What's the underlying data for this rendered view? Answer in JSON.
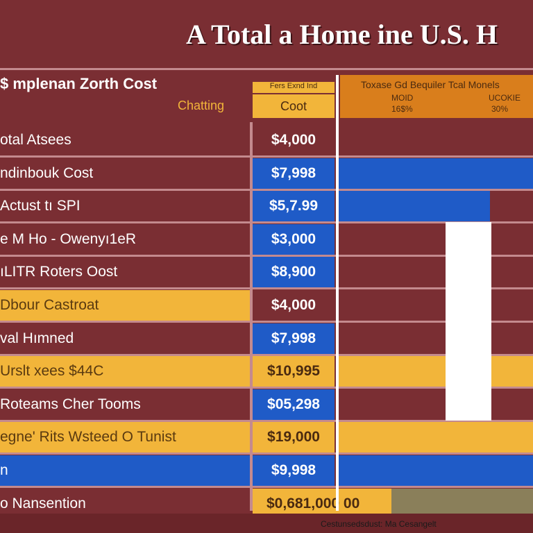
{
  "title": "A Total a Home ine U.S. H",
  "header": {
    "left": "$ mplenan Zorth Cost",
    "sub": "Chatting",
    "mid_top": "Fers Exnd Ind",
    "mid": "Coot",
    "right_title": "Toxase Gd Bequiler Tcal Monels",
    "right_a1": "MOID",
    "right_a2": "16$%",
    "right_b1": "UCOKIE",
    "right_b2": "30%"
  },
  "footer": "Cestunsedsdust: Ma Cesangelt",
  "colors": {
    "background": "#7a2e33",
    "blue": "#1f5bc7",
    "yellow": "#f2b53a",
    "orange": "#d97e1c",
    "olive": "#8a7f5a",
    "white": "#ffffff"
  },
  "chart_data": {
    "type": "table",
    "title": "A Total a Home ine U.S. H",
    "rows": [
      {
        "label": "otal Atsees",
        "value": "$4,000",
        "label_bg": "maroon",
        "value_bg": "maroon",
        "bar": "maroon"
      },
      {
        "label": "ndinbouk Cost",
        "value": "$7,998",
        "label_bg": "maroon",
        "value_bg": "blue",
        "bar": "blue"
      },
      {
        "label": "Actust tı SPI",
        "value": "$5,7.99",
        "label_bg": "maroon",
        "value_bg": "blue",
        "bar": "blue"
      },
      {
        "label": "e M Ho - Owenyı1eR",
        "value": "$3,000",
        "label_bg": "maroon",
        "value_bg": "blue",
        "bar": "maroon"
      },
      {
        "label": "ıLITR Roters Oost",
        "value": "$8,900",
        "label_bg": "maroon",
        "value_bg": "blue",
        "bar": "maroon"
      },
      {
        "label": "Dbour Castroat",
        "value": "$4,000",
        "label_bg": "yellow",
        "value_bg": "maroon",
        "bar": "maroon"
      },
      {
        "label": "val Hımned",
        "value": "$7,998",
        "label_bg": "maroon",
        "value_bg": "blue",
        "bar": "maroon"
      },
      {
        "label": "Urslt xees $44C",
        "value": "$10,995",
        "label_bg": "yellow",
        "value_bg": "yellow",
        "bar": "yellow"
      },
      {
        "label": "Roteams Cher Tooms",
        "value": "$05,298",
        "label_bg": "maroon",
        "value_bg": "blue",
        "bar": "maroon"
      },
      {
        "label": "egne' Rits Wsteed O Tunist",
        "value": "$19,000",
        "label_bg": "yellow",
        "value_bg": "yellow",
        "bar": "yellow"
      },
      {
        "label": "n",
        "value": "$9,998",
        "label_bg": "blue",
        "value_bg": "blue",
        "bar": "blue"
      },
      {
        "label": "o Nansention",
        "value": "$0,681,000 00",
        "label_bg": "maroon",
        "value_bg": "yellow",
        "bar": "olive"
      }
    ]
  }
}
